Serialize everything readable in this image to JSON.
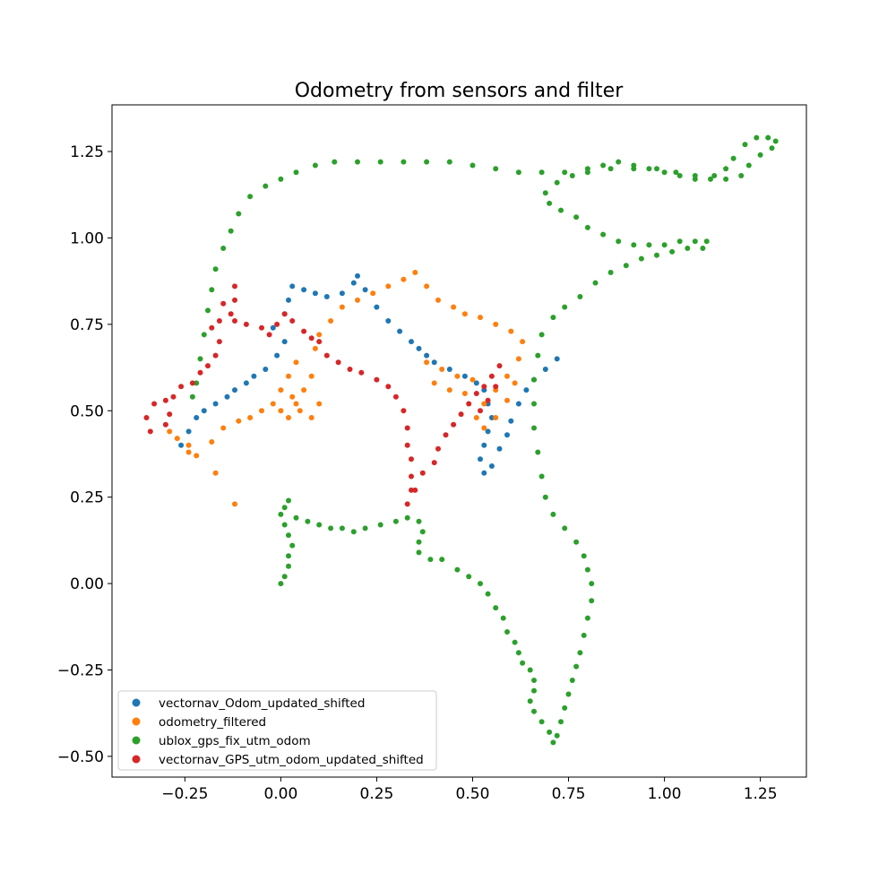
{
  "chart_data": {
    "type": "scatter",
    "title": "Odometry from sensors and filter",
    "xlabel": "",
    "ylabel": "",
    "xlim": [
      -0.44,
      1.37
    ],
    "ylim": [
      -0.56,
      1.385
    ],
    "xticks": [
      -0.25,
      0.0,
      0.25,
      0.5,
      0.75,
      1.0,
      1.25
    ],
    "xtick_labels": [
      "−0.25",
      "0.00",
      "0.25",
      "0.50",
      "0.75",
      "1.00",
      "1.25"
    ],
    "yticks": [
      -0.5,
      -0.25,
      0.0,
      0.25,
      0.5,
      0.75,
      1.0,
      1.25
    ],
    "ytick_labels": [
      "−0.50",
      "−0.25",
      "0.00",
      "0.25",
      "0.50",
      "0.75",
      "1.00",
      "1.25"
    ],
    "grid": false,
    "legend_position": "lower left",
    "series": [
      {
        "name": "vectornav_Odom_updated_shifted",
        "color": "#1f77b4",
        "points": [
          [
            -0.26,
            0.4
          ],
          [
            -0.24,
            0.44
          ],
          [
            -0.22,
            0.48
          ],
          [
            -0.2,
            0.5
          ],
          [
            -0.17,
            0.52
          ],
          [
            -0.14,
            0.54
          ],
          [
            -0.12,
            0.56
          ],
          [
            -0.09,
            0.58
          ],
          [
            -0.07,
            0.6
          ],
          [
            -0.04,
            0.62
          ],
          [
            -0.01,
            0.66
          ],
          [
            0.01,
            0.7
          ],
          [
            -0.02,
            0.74
          ],
          [
            0.01,
            0.78
          ],
          [
            0.02,
            0.82
          ],
          [
            0.03,
            0.86
          ],
          [
            0.06,
            0.85
          ],
          [
            0.09,
            0.84
          ],
          [
            0.12,
            0.83
          ],
          [
            0.16,
            0.84
          ],
          [
            0.19,
            0.87
          ],
          [
            0.2,
            0.89
          ],
          [
            0.22,
            0.85
          ],
          [
            0.25,
            0.8
          ],
          [
            0.28,
            0.76
          ],
          [
            0.31,
            0.73
          ],
          [
            0.34,
            0.7
          ],
          [
            0.36,
            0.68
          ],
          [
            0.38,
            0.66
          ],
          [
            0.4,
            0.64
          ],
          [
            0.44,
            0.62
          ],
          [
            0.48,
            0.6
          ],
          [
            0.51,
            0.58
          ],
          [
            0.53,
            0.56
          ],
          [
            0.54,
            0.52
          ],
          [
            0.55,
            0.48
          ],
          [
            0.54,
            0.44
          ],
          [
            0.53,
            0.4
          ],
          [
            0.52,
            0.36
          ],
          [
            0.53,
            0.32
          ],
          [
            0.55,
            0.34
          ],
          [
            0.57,
            0.39
          ],
          [
            0.59,
            0.43
          ],
          [
            0.6,
            0.47
          ],
          [
            0.62,
            0.52
          ],
          [
            0.64,
            0.56
          ],
          [
            0.66,
            0.59
          ],
          [
            0.69,
            0.62
          ],
          [
            0.72,
            0.65
          ]
        ]
      },
      {
        "name": "odometry_filtered",
        "color": "#ff7f0e",
        "points": [
          [
            -0.29,
            0.44
          ],
          [
            -0.27,
            0.42
          ],
          [
            -0.24,
            0.4
          ],
          [
            -0.22,
            0.37
          ],
          [
            -0.18,
            0.41
          ],
          [
            -0.15,
            0.45
          ],
          [
            -0.11,
            0.47
          ],
          [
            -0.08,
            0.48
          ],
          [
            -0.05,
            0.5
          ],
          [
            -0.02,
            0.52
          ],
          [
            0.0,
            0.5
          ],
          [
            0.02,
            0.48
          ],
          [
            0.04,
            0.52
          ],
          [
            0.06,
            0.56
          ],
          [
            0.08,
            0.6
          ],
          [
            0.04,
            0.64
          ],
          [
            0.02,
            0.6
          ],
          [
            0.0,
            0.56
          ],
          [
            0.03,
            0.54
          ],
          [
            0.05,
            0.5
          ],
          [
            0.08,
            0.48
          ],
          [
            0.1,
            0.52
          ],
          [
            0.09,
            0.68
          ],
          [
            0.1,
            0.72
          ],
          [
            0.13,
            0.76
          ],
          [
            0.16,
            0.8
          ],
          [
            0.2,
            0.82
          ],
          [
            0.24,
            0.84
          ],
          [
            0.28,
            0.86
          ],
          [
            0.32,
            0.88
          ],
          [
            0.35,
            0.9
          ],
          [
            0.38,
            0.86
          ],
          [
            0.41,
            0.82
          ],
          [
            0.45,
            0.8
          ],
          [
            0.48,
            0.78
          ],
          [
            0.52,
            0.77
          ],
          [
            0.56,
            0.75
          ],
          [
            0.6,
            0.73
          ],
          [
            0.63,
            0.7
          ],
          [
            0.62,
            0.65
          ],
          [
            0.59,
            0.6
          ],
          [
            0.56,
            0.56
          ],
          [
            0.53,
            0.52
          ],
          [
            0.51,
            0.48
          ],
          [
            0.53,
            0.45
          ],
          [
            0.56,
            0.48
          ],
          [
            0.59,
            0.53
          ],
          [
            0.61,
            0.58
          ],
          [
            0.5,
            0.59
          ],
          [
            0.46,
            0.6
          ],
          [
            0.42,
            0.62
          ],
          [
            0.38,
            0.64
          ],
          [
            0.4,
            0.58
          ],
          [
            0.44,
            0.56
          ],
          [
            0.48,
            0.55
          ],
          [
            -0.12,
            0.23
          ],
          [
            -0.17,
            0.32
          ],
          [
            -0.24,
            0.38
          ]
        ]
      },
      {
        "name": "ublox_gps_fix_utm_odom",
        "color": "#2ca02c",
        "points": [
          [
            0.0,
            0.0
          ],
          [
            0.01,
            0.02
          ],
          [
            0.02,
            0.05
          ],
          [
            0.02,
            0.08
          ],
          [
            0.03,
            0.11
          ],
          [
            0.02,
            0.14
          ],
          [
            0.01,
            0.17
          ],
          [
            0.0,
            0.2
          ],
          [
            0.01,
            0.22
          ],
          [
            0.02,
            0.24
          ],
          [
            0.04,
            0.19
          ],
          [
            0.07,
            0.18
          ],
          [
            0.1,
            0.17
          ],
          [
            0.13,
            0.16
          ],
          [
            0.16,
            0.16
          ],
          [
            0.19,
            0.15
          ],
          [
            0.22,
            0.16
          ],
          [
            0.26,
            0.17
          ],
          [
            0.3,
            0.18
          ],
          [
            0.33,
            0.19
          ],
          [
            0.36,
            0.18
          ],
          [
            0.37,
            0.15
          ],
          [
            0.36,
            0.12
          ],
          [
            0.36,
            0.09
          ],
          [
            0.39,
            0.07
          ],
          [
            0.42,
            0.07
          ],
          [
            0.46,
            0.04
          ],
          [
            0.49,
            0.02
          ],
          [
            0.52,
            0.0
          ],
          [
            0.54,
            -0.03
          ],
          [
            0.56,
            -0.07
          ],
          [
            0.58,
            -0.1
          ],
          [
            0.59,
            -0.14
          ],
          [
            0.61,
            -0.17
          ],
          [
            0.62,
            -0.2
          ],
          [
            0.63,
            -0.23
          ],
          [
            0.65,
            -0.25
          ],
          [
            0.66,
            -0.28
          ],
          [
            0.66,
            -0.31
          ],
          [
            0.65,
            -0.34
          ],
          [
            0.66,
            -0.37
          ],
          [
            0.68,
            -0.4
          ],
          [
            0.7,
            -0.43
          ],
          [
            0.71,
            -0.46
          ],
          [
            0.72,
            -0.44
          ],
          [
            0.73,
            -0.4
          ],
          [
            0.74,
            -0.36
          ],
          [
            0.75,
            -0.32
          ],
          [
            0.76,
            -0.28
          ],
          [
            0.77,
            -0.24
          ],
          [
            0.78,
            -0.2
          ],
          [
            0.79,
            -0.15
          ],
          [
            0.8,
            -0.1
          ],
          [
            0.81,
            -0.05
          ],
          [
            0.81,
            0.0
          ],
          [
            0.8,
            0.04
          ],
          [
            0.79,
            0.08
          ],
          [
            0.77,
            0.12
          ],
          [
            0.74,
            0.16
          ],
          [
            0.71,
            0.2
          ],
          [
            0.69,
            0.25
          ],
          [
            0.68,
            0.31
          ],
          [
            0.67,
            0.38
          ],
          [
            0.66,
            0.45
          ],
          [
            0.66,
            0.52
          ],
          [
            0.66,
            0.59
          ],
          [
            0.67,
            0.66
          ],
          [
            0.68,
            0.72
          ],
          [
            0.71,
            0.77
          ],
          [
            0.74,
            0.8
          ],
          [
            0.78,
            0.83
          ],
          [
            0.82,
            0.87
          ],
          [
            0.86,
            0.9
          ],
          [
            0.9,
            0.92
          ],
          [
            0.94,
            0.94
          ],
          [
            0.98,
            0.95
          ],
          [
            1.02,
            0.96
          ],
          [
            1.06,
            0.97
          ],
          [
            1.1,
            0.97
          ],
          [
            1.11,
            0.99
          ],
          [
            1.08,
            0.99
          ],
          [
            1.04,
            0.99
          ],
          [
            1.0,
            0.98
          ],
          [
            0.96,
            0.98
          ],
          [
            0.92,
            0.98
          ],
          [
            0.88,
            0.99
          ],
          [
            0.84,
            1.01
          ],
          [
            0.8,
            1.03
          ],
          [
            0.77,
            1.06
          ],
          [
            0.73,
            1.08
          ],
          [
            0.7,
            1.1
          ],
          [
            0.69,
            1.13
          ],
          [
            0.72,
            1.16
          ],
          [
            0.76,
            1.18
          ],
          [
            0.8,
            1.2
          ],
          [
            0.84,
            1.21
          ],
          [
            0.88,
            1.22
          ],
          [
            0.92,
            1.21
          ],
          [
            0.96,
            1.2
          ],
          [
            1.0,
            1.19
          ],
          [
            1.04,
            1.18
          ],
          [
            1.08,
            1.17
          ],
          [
            1.12,
            1.17
          ],
          [
            1.16,
            1.17
          ],
          [
            1.2,
            1.18
          ],
          [
            1.22,
            1.21
          ],
          [
            1.25,
            1.24
          ],
          [
            1.28,
            1.26
          ],
          [
            1.29,
            1.28
          ],
          [
            1.27,
            1.29
          ],
          [
            1.24,
            1.29
          ],
          [
            1.21,
            1.27
          ],
          [
            1.18,
            1.23
          ],
          [
            1.16,
            1.2
          ],
          [
            1.13,
            1.18
          ],
          [
            1.08,
            1.18
          ],
          [
            1.03,
            1.19
          ],
          [
            0.98,
            1.2
          ],
          [
            0.92,
            1.2
          ],
          [
            0.86,
            1.2
          ],
          [
            0.8,
            1.19
          ],
          [
            0.74,
            1.19
          ],
          [
            0.68,
            1.19
          ],
          [
            0.62,
            1.19
          ],
          [
            0.56,
            1.2
          ],
          [
            0.5,
            1.21
          ],
          [
            0.44,
            1.22
          ],
          [
            0.38,
            1.22
          ],
          [
            0.32,
            1.22
          ],
          [
            0.26,
            1.22
          ],
          [
            0.2,
            1.22
          ],
          [
            0.14,
            1.22
          ],
          [
            0.09,
            1.21
          ],
          [
            0.04,
            1.19
          ],
          [
            0.0,
            1.17
          ],
          [
            -0.04,
            1.15
          ],
          [
            -0.08,
            1.12
          ],
          [
            -0.11,
            1.07
          ],
          [
            -0.13,
            1.02
          ],
          [
            -0.15,
            0.97
          ],
          [
            -0.17,
            0.91
          ],
          [
            -0.18,
            0.85
          ],
          [
            -0.19,
            0.79
          ],
          [
            -0.2,
            0.72
          ],
          [
            -0.21,
            0.65
          ],
          [
            -0.22,
            0.58
          ],
          [
            -0.23,
            0.54
          ]
        ]
      },
      {
        "name": "vectornav_GPS_utm_odom_updated_shifted",
        "color": "#d62728",
        "points": [
          [
            -0.34,
            0.44
          ],
          [
            -0.35,
            0.48
          ],
          [
            -0.33,
            0.52
          ],
          [
            -0.3,
            0.53
          ],
          [
            -0.29,
            0.49
          ],
          [
            -0.3,
            0.46
          ],
          [
            -0.28,
            0.54
          ],
          [
            -0.26,
            0.57
          ],
          [
            -0.23,
            0.58
          ],
          [
            -0.21,
            0.61
          ],
          [
            -0.19,
            0.63
          ],
          [
            -0.17,
            0.66
          ],
          [
            -0.16,
            0.7
          ],
          [
            -0.18,
            0.74
          ],
          [
            -0.16,
            0.76
          ],
          [
            -0.13,
            0.78
          ],
          [
            -0.12,
            0.82
          ],
          [
            -0.12,
            0.86
          ],
          [
            -0.15,
            0.81
          ],
          [
            -0.12,
            0.76
          ],
          [
            -0.09,
            0.75
          ],
          [
            -0.05,
            0.74
          ],
          [
            -0.03,
            0.72
          ],
          [
            -0.01,
            0.75
          ],
          [
            0.01,
            0.78
          ],
          [
            0.03,
            0.76
          ],
          [
            0.06,
            0.73
          ],
          [
            0.08,
            0.71
          ],
          [
            0.1,
            0.7
          ],
          [
            0.12,
            0.66
          ],
          [
            0.15,
            0.64
          ],
          [
            0.18,
            0.62
          ],
          [
            0.21,
            0.61
          ],
          [
            0.25,
            0.59
          ],
          [
            0.28,
            0.57
          ],
          [
            0.3,
            0.54
          ],
          [
            0.32,
            0.5
          ],
          [
            0.33,
            0.45
          ],
          [
            0.33,
            0.4
          ],
          [
            0.34,
            0.36
          ],
          [
            0.34,
            0.31
          ],
          [
            0.34,
            0.27
          ],
          [
            0.33,
            0.23
          ],
          [
            0.35,
            0.27
          ],
          [
            0.37,
            0.32
          ],
          [
            0.4,
            0.35
          ],
          [
            0.41,
            0.39
          ],
          [
            0.43,
            0.43
          ],
          [
            0.45,
            0.46
          ],
          [
            0.47,
            0.49
          ],
          [
            0.49,
            0.52
          ],
          [
            0.51,
            0.55
          ],
          [
            0.53,
            0.57
          ],
          [
            0.55,
            0.6
          ],
          [
            0.57,
            0.63
          ],
          [
            0.56,
            0.57
          ],
          [
            0.54,
            0.53
          ],
          [
            0.52,
            0.5
          ]
        ]
      }
    ]
  }
}
